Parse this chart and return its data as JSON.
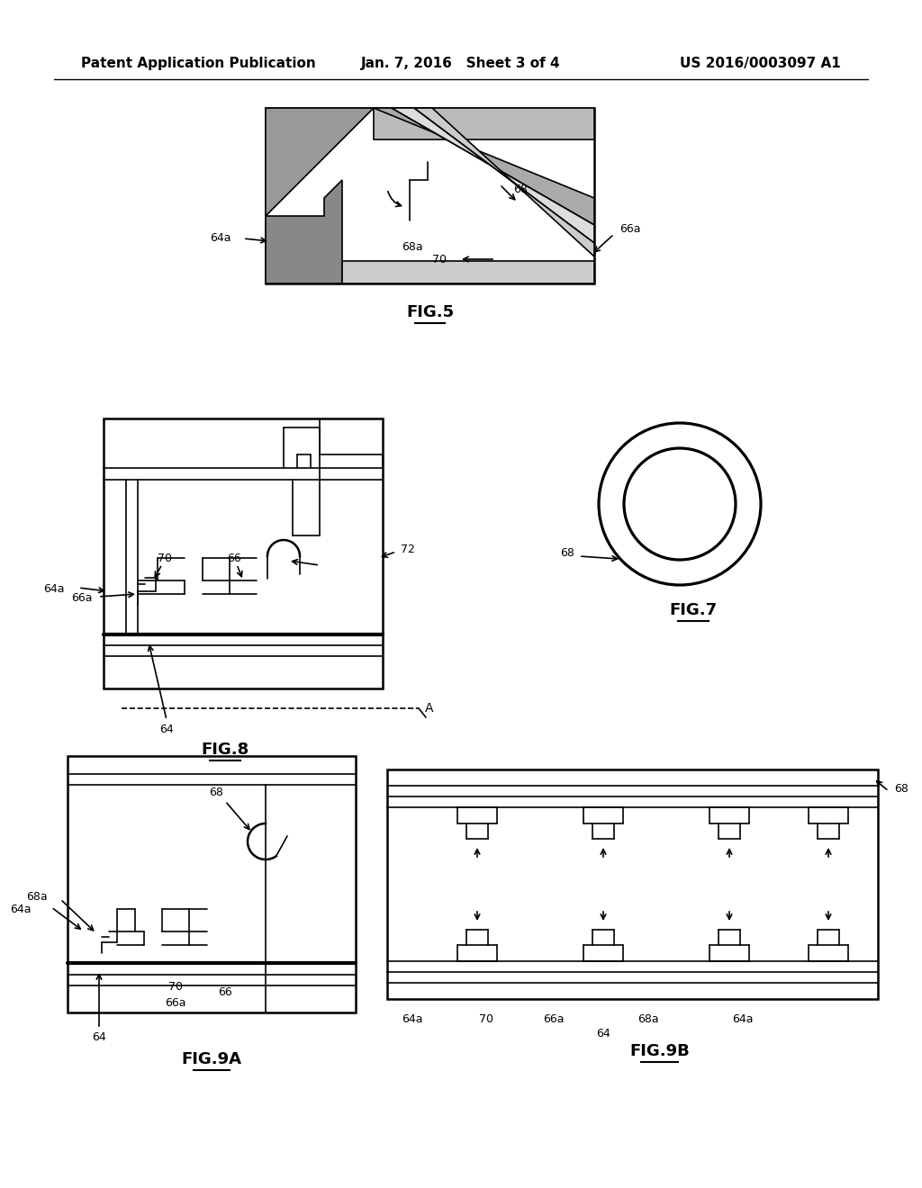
{
  "title_left": "Patent Application Publication",
  "title_center": "Jan. 7, 2016   Sheet 3 of 4",
  "title_right": "US 2016/0003097 A1",
  "fig5_label": "FIG.5",
  "fig7_label": "FIG.7",
  "fig8_label": "FIG.8",
  "fig9a_label": "FIG.9A",
  "fig9b_label": "FIG.9B",
  "bg_color": "#ffffff",
  "line_color": "#000000",
  "header_fontsize": 11,
  "fig_label_fontsize": 13
}
